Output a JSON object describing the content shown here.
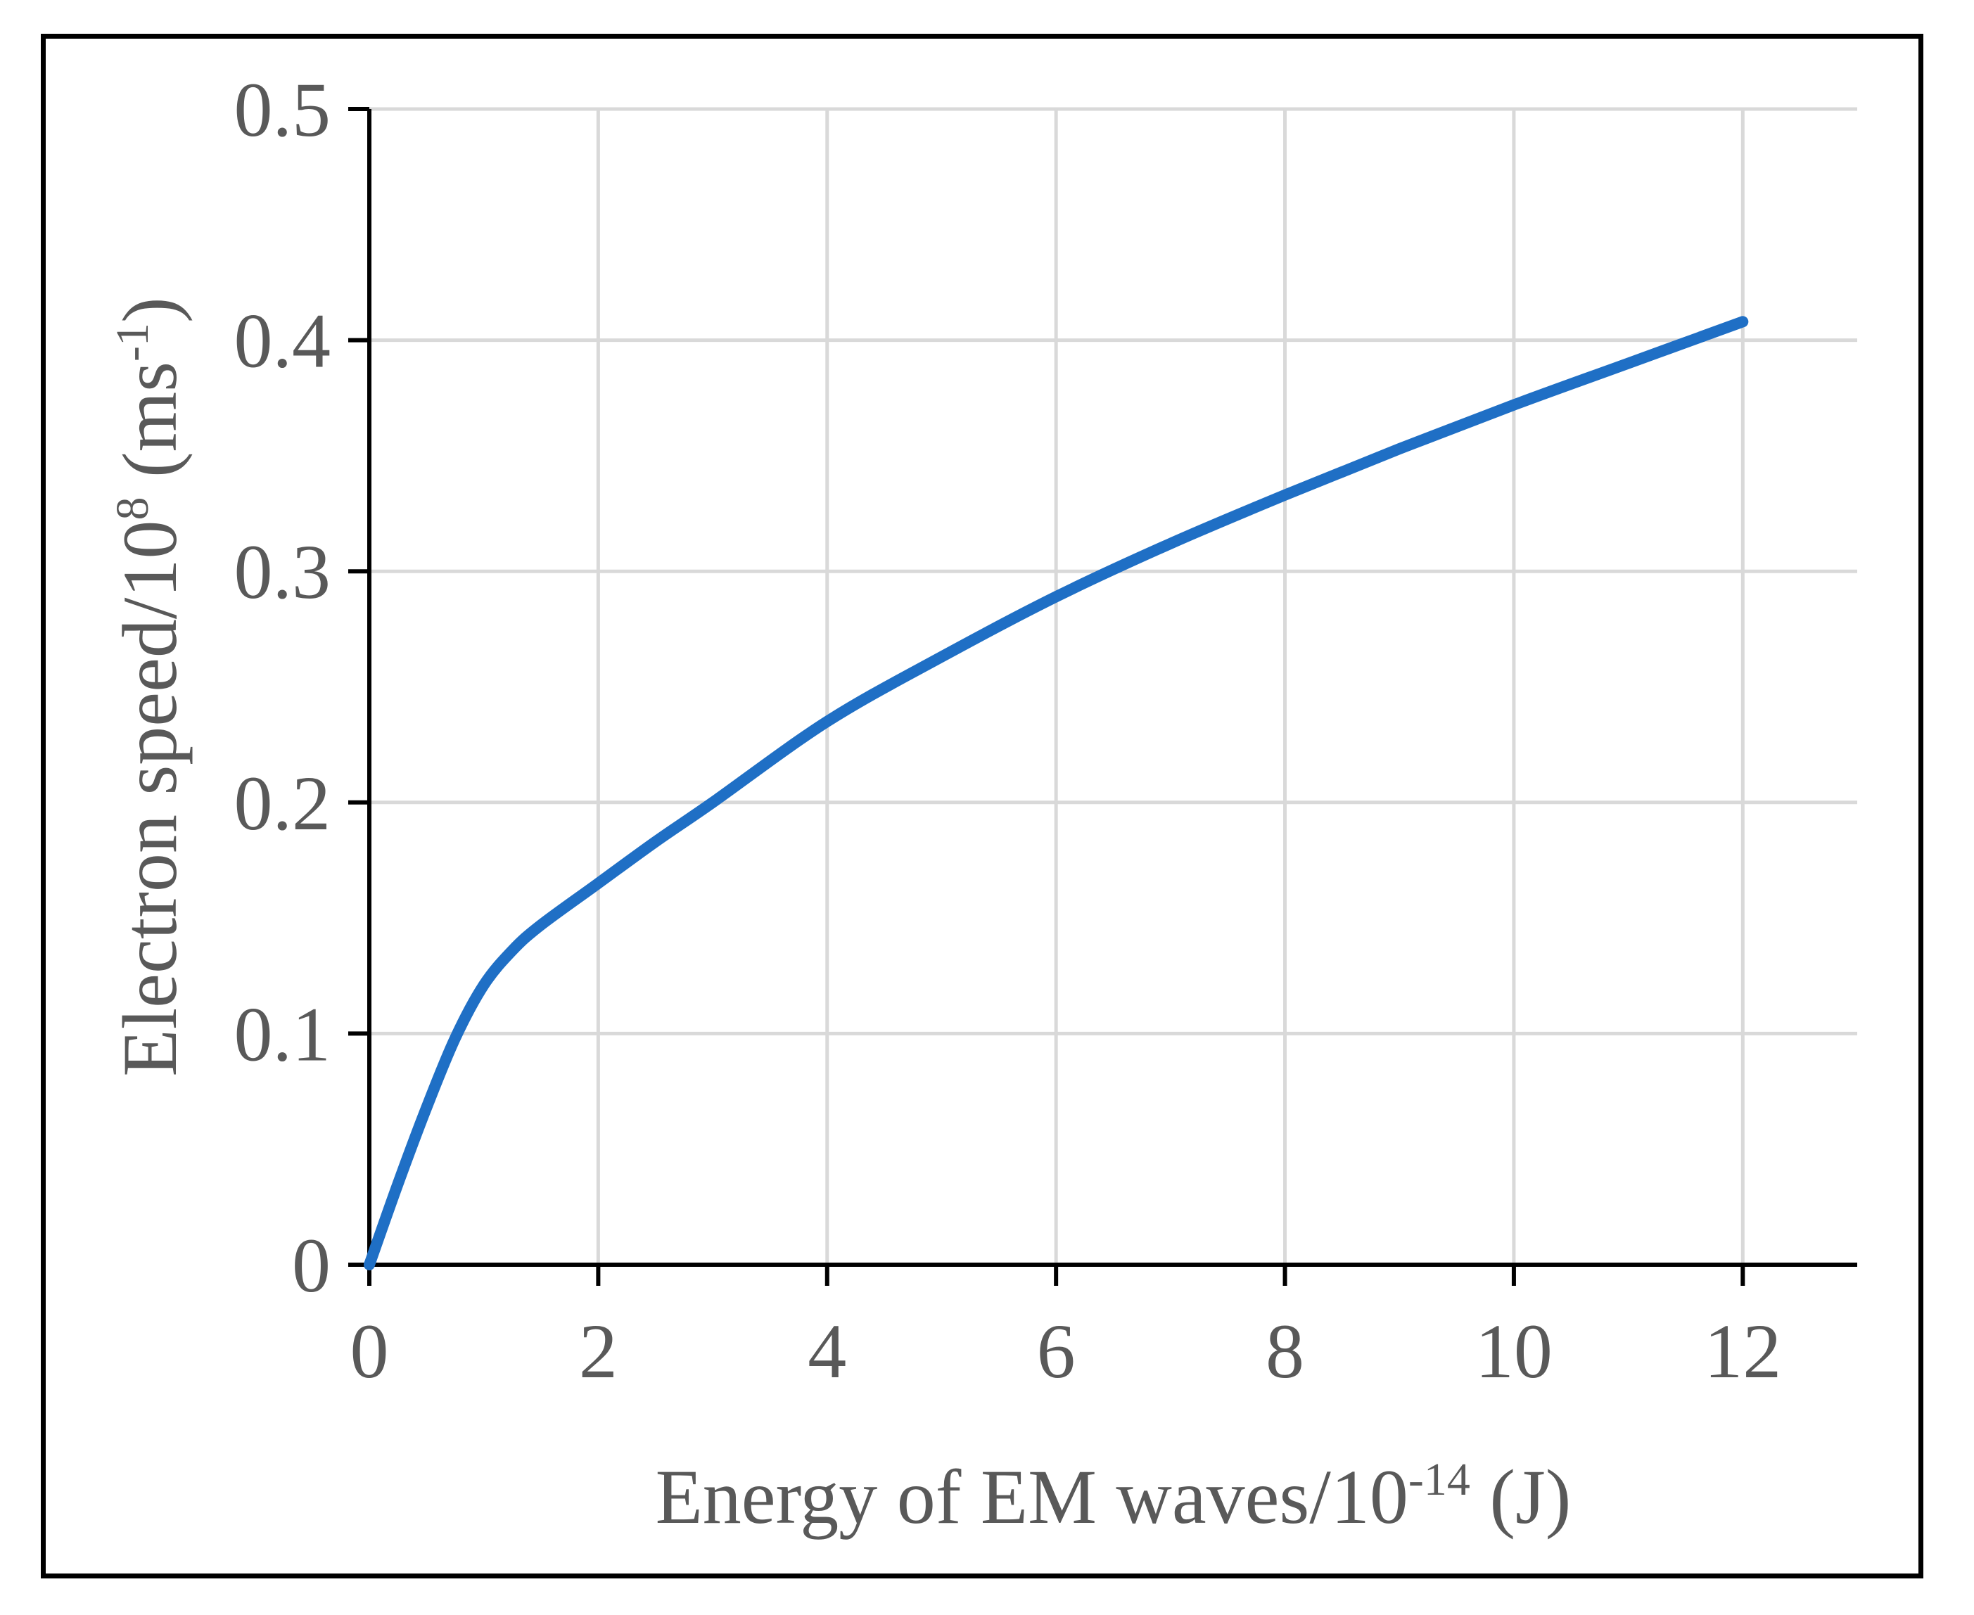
{
  "chart_data": {
    "type": "line",
    "title": "",
    "xlabel": {
      "text": "Energy of EM waves/10",
      "superscript": "-14",
      "suffix": " (J)"
    },
    "ylabel": {
      "text": "Electron speed/10",
      "superscript": "8",
      "suffix": " (ms",
      "suffix_superscript": "-1",
      "end": ")"
    },
    "xlim": [
      0,
      13
    ],
    "ylim": [
      0,
      0.5
    ],
    "x_ticks": [
      0,
      2,
      4,
      6,
      8,
      10,
      12
    ],
    "x_tick_labels": [
      "0",
      "2",
      "4",
      "6",
      "8",
      "10",
      "12"
    ],
    "y_ticks": [
      0,
      0.1,
      0.2,
      0.3,
      0.4,
      0.5
    ],
    "y_tick_labels": [
      "0",
      "0.1",
      "0.2",
      "0.3",
      "0.4",
      "0.5"
    ],
    "grid": true,
    "legend": "none",
    "series": [
      {
        "name": "Electron speed",
        "color": "#1f6fc5",
        "x": [
          0,
          0.25,
          0.5,
          0.75,
          1.0,
          1.25,
          1.5,
          2,
          2.5,
          3,
          4,
          5,
          6,
          7,
          8,
          9,
          10,
          11,
          12
        ],
        "y": [
          0,
          0.035,
          0.068,
          0.098,
          0.121,
          0.136,
          0.147,
          0.165,
          0.183,
          0.2,
          0.235,
          0.263,
          0.289,
          0.312,
          0.333,
          0.353,
          0.372,
          0.39,
          0.408
        ]
      }
    ]
  },
  "colors": {
    "axis": "#000000",
    "grid": "#d9d9d9",
    "text": "#595959",
    "frame": "#000000"
  }
}
